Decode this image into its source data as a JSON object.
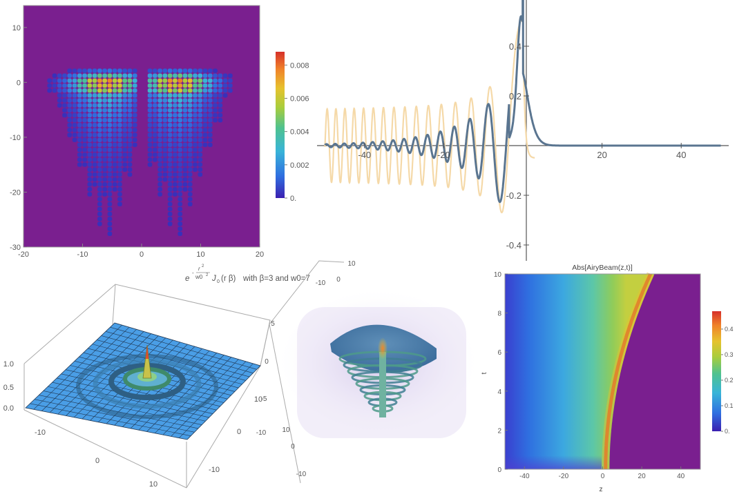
{
  "chart_data": [
    {
      "type": "heatmap",
      "title": "",
      "xlim": [
        -20,
        20
      ],
      "ylim": [
        -30,
        14
      ],
      "x_ticks": [
        -20,
        -10,
        0,
        10,
        20
      ],
      "y_ticks": [
        10,
        0,
        -10,
        -20,
        -30
      ],
      "background_color": "#7a1f8f",
      "colorbar": {
        "ticks": [
          "0.008",
          "0.006",
          "0.004",
          "0.002",
          "0."
        ],
        "range": [
          0,
          0.0088
        ]
      },
      "description_values": {
        "peak_x": [
          -6,
          6
        ],
        "peak_y": 0
      }
    },
    {
      "type": "line",
      "xlim": [
        -52,
        52
      ],
      "ylim": [
        -0.45,
        0.55
      ],
      "x_ticks": [
        "-40",
        "-20",
        "20",
        "40"
      ],
      "y_ticks": [
        "0.4",
        "0.2",
        "-0.2",
        "-0.4"
      ],
      "series": [
        {
          "color": "#f5d9a8",
          "role": "real part of Airy-type oscillation"
        },
        {
          "color": "#5a7590",
          "role": "Airy function",
          "peak_y": 0.46,
          "peak_x": -0.5
        }
      ]
    },
    {
      "type": "surface",
      "title_parts": {
        "e": "e",
        "minus": "-",
        "num": "r",
        "exp_num": "2",
        "den": "w0",
        "exp_den": "2",
        "bessel": "J",
        "sub": "0",
        "args": "(r β)",
        "rest": "with β=3 and w0=7"
      },
      "z_ticks": [
        "1.0",
        "0.5",
        "0.0"
      ],
      "x_ticks": [
        "-10",
        "0",
        "10"
      ],
      "y_ticks": [
        "10",
        "0",
        "-10"
      ],
      "surface_color": "#4a9ee6"
    },
    {
      "type": "volume",
      "x_ticks": [
        "10",
        "0",
        "-10"
      ],
      "y_ticks": [
        "10",
        "0",
        "-10"
      ],
      "z_ticks": [
        "5",
        "0",
        "-5",
        "-10"
      ]
    },
    {
      "type": "heatmap",
      "title": "Abs[AiryBeam(z,t)]",
      "xlabel": "z",
      "ylabel": "t",
      "xlim": [
        -50,
        50
      ],
      "ylim": [
        0,
        10
      ],
      "x_ticks": [
        "-40",
        "-20",
        "0",
        "20",
        "40"
      ],
      "y_ticks": [
        "10",
        "8",
        "6",
        "4",
        "2",
        "0"
      ],
      "colorbar": {
        "ticks": [
          "0.4",
          "0.3",
          "0.2",
          "0.1",
          "0."
        ],
        "range": [
          0,
          0.47
        ]
      }
    }
  ]
}
